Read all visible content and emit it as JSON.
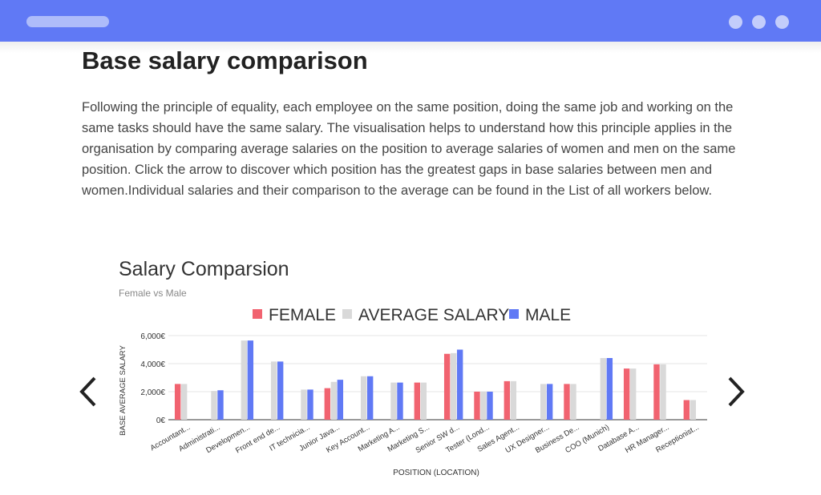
{
  "window": {
    "url_placeholder": "",
    "colors": {
      "titlebar": "#6079f5",
      "pill": "#aebcfa",
      "dots": "#c3cdfb"
    }
  },
  "page": {
    "title": "Base salary comparison",
    "intro": "Following the principle of equality, each employee on the same position, doing the same job and working on the same tasks should have the same salary. The visualisation helps to understand how this principle applies in the organisation by comparing average salaries on the position to average salaries of women and men on the same position. Click the arrow to discover which position has the greatest gaps in base salaries between men and women.Individual salaries and their comparison to the average can be found in the List of all workers below."
  },
  "navigation": {
    "prev_icon": "chevron-left-icon",
    "next_icon": "chevron-right-icon"
  },
  "chart_data": {
    "type": "bar",
    "title": "Salary Comparsion",
    "subtitle": "Female vs Male",
    "xlabel": "POSITION (LOCATION)",
    "ylabel": "BASE AVERAGE SALARY",
    "ylim": [
      0,
      6000
    ],
    "yticks": [
      "0€",
      "2,000€",
      "4,000€",
      "6,000€"
    ],
    "ytick_values": [
      0,
      2000,
      4000,
      6000
    ],
    "grid": true,
    "legend_position": "top",
    "categories": [
      "Accountant...",
      "Administrati...",
      "Developmen...",
      "Front end de...",
      "IT technicia...",
      "Junior Java...",
      "Key Account...",
      "Marketing A...",
      "Marketing S...",
      "Senior SW d...",
      "Tester (Lond...",
      "Sales Agent...",
      "UX Designer...",
      "Business De...",
      "COO (Munich)",
      "Database A...",
      "HR Manager...",
      "Receptionist..."
    ],
    "series": [
      {
        "name": "FEMALE",
        "color": "#f16370",
        "values": [
          2550,
          null,
          null,
          null,
          null,
          2250,
          null,
          null,
          2650,
          4700,
          2000,
          2750,
          null,
          2550,
          null,
          3650,
          3950,
          1400
        ]
      },
      {
        "name": "AVERAGE SALARY",
        "color": "#d9d9d9",
        "values": [
          2550,
          2050,
          5650,
          4150,
          2150,
          2700,
          3100,
          2650,
          2650,
          4750,
          2000,
          2750,
          2550,
          2550,
          4400,
          3650,
          3950,
          1400
        ]
      },
      {
        "name": "MALE",
        "color": "#6079f5",
        "values": [
          null,
          2100,
          5650,
          4150,
          2150,
          2850,
          3100,
          2650,
          null,
          5000,
          2000,
          null,
          2550,
          null,
          4400,
          null,
          null,
          null
        ]
      }
    ]
  }
}
